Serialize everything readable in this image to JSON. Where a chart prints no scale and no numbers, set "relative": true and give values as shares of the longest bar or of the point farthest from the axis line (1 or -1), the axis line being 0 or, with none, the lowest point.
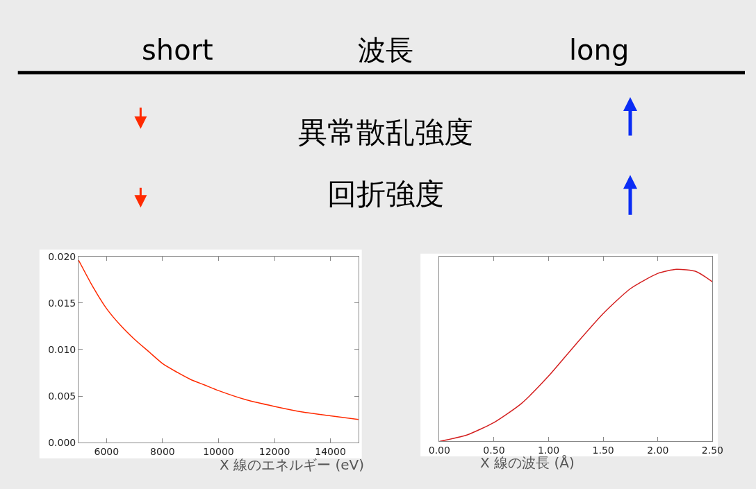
{
  "chart_data": [
    {
      "type": "other",
      "annotations": [
        "short",
        "波長",
        "long",
        "異常散乱強度",
        "回折強度"
      ]
    },
    {
      "type": "line",
      "xlabel": "X 線のエネルギー (eV)",
      "x": [
        5000,
        5500,
        6000,
        6500,
        7000,
        7500,
        8000,
        8500,
        9000,
        9500,
        10000,
        11000,
        12000,
        13000,
        14000,
        15000
      ],
      "series": [
        {
          "color": "#ff2a00",
          "values": [
            0.0196,
            0.0168,
            0.0144,
            0.0126,
            0.0111,
            0.0098,
            0.0085,
            0.0076,
            0.0068,
            0.0062,
            0.0056,
            0.0046,
            0.0039,
            0.0033,
            0.0029,
            0.0025
          ]
        }
      ],
      "xlim": [
        5000,
        15000
      ],
      "xticks": [
        6000,
        8000,
        10000,
        12000,
        14000
      ],
      "ylim": [
        0,
        0.02
      ],
      "yticks": [
        {
          "value": 0,
          "label": "0.000"
        },
        {
          "value": 0.005,
          "label": "0.005"
        },
        {
          "value": 0.01,
          "label": "0.010"
        },
        {
          "value": 0.015,
          "label": "0.015"
        },
        {
          "value": 0.02,
          "label": "0.020"
        }
      ]
    },
    {
      "type": "line",
      "xlabel": "X 線の波長 (Å)",
      "relative": true,
      "x": [
        0,
        0.25,
        0.5,
        0.75,
        1.0,
        1.25,
        1.5,
        1.75,
        2.0,
        2.17,
        2.35,
        2.5
      ],
      "series": [
        {
          "color": "#d42020",
          "values": [
            0,
            0.037,
            0.11,
            0.22,
            0.38,
            0.565,
            0.743,
            0.888,
            0.976,
            1,
            0.987,
            0.927
          ]
        }
      ],
      "xlim": [
        0,
        2.5
      ],
      "xticks": [
        {
          "value": 0,
          "label": "0.00"
        },
        {
          "value": 0.5,
          "label": "0.50"
        },
        {
          "value": 1,
          "label": "1.00"
        },
        {
          "value": 1.5,
          "label": "1.50"
        },
        {
          "value": 2,
          "label": "2.00"
        },
        {
          "value": 2.5,
          "label": "2.50"
        }
      ]
    }
  ]
}
